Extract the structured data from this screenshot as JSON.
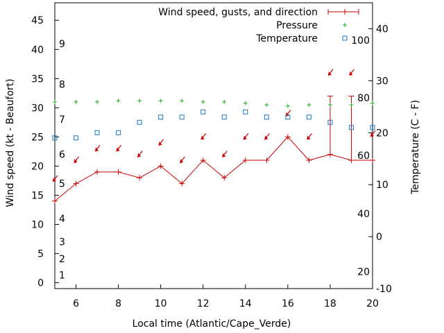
{
  "chart_data": {
    "type": "line",
    "xlabel": "Local time (Atlantic/Cape_Verde)",
    "ylabel": "Wind speed (kt - Beaufort)",
    "y2label": "Temperature (C - F)",
    "xlim": [
      5,
      20
    ],
    "ylim": [
      -1,
      48
    ],
    "y2lim": [
      -10,
      45
    ],
    "x_ticks": [
      6,
      8,
      10,
      12,
      14,
      16,
      18,
      20
    ],
    "y_ticks": [
      0,
      5,
      10,
      15,
      20,
      25,
      30,
      35,
      40,
      45
    ],
    "y2_ticks": [
      -10,
      0,
      10,
      20,
      30,
      40
    ],
    "beaufort_labels": [
      {
        "label": "1",
        "value": 1.3
      },
      {
        "label": "2",
        "value": 4.1
      },
      {
        "label": "3",
        "value": 7.0
      },
      {
        "label": "4",
        "value": 11.0
      },
      {
        "label": "5",
        "value": 17.0
      },
      {
        "label": "6",
        "value": 22.0
      },
      {
        "label": "7",
        "value": 28.0
      },
      {
        "label": "8",
        "value": 34.0
      },
      {
        "label": "9",
        "value": 41.0
      }
    ],
    "fahrenheit_labels": [
      {
        "label": "20",
        "value": -6.7
      },
      {
        "label": "40",
        "value": 4.4
      },
      {
        "label": "60",
        "value": 15.6
      },
      {
        "label": "80",
        "value": 26.7
      },
      {
        "label": "100",
        "value": 37.8
      }
    ],
    "legend": [
      {
        "label": "Wind speed, gusts, and direction",
        "symbol": "line-plus",
        "color": "#cc0000"
      },
      {
        "label": "Pressure",
        "symbol": "plus",
        "color": "#22aa22"
      },
      {
        "label": "Temperature",
        "symbol": "square",
        "color": "#1a78c2"
      }
    ],
    "series": [
      {
        "name": "Wind speed",
        "color": "#cc0000",
        "x": [
          5,
          6,
          7,
          8,
          9,
          10,
          11,
          12,
          13,
          14,
          15,
          16,
          17,
          18,
          19,
          20
        ],
        "values": [
          14,
          17,
          19,
          19,
          18,
          20,
          17,
          21,
          18,
          21,
          21,
          25,
          21,
          22,
          21,
          21
        ]
      },
      {
        "name": "Gusts",
        "color": "#cc0000",
        "x": [
          18,
          19
        ],
        "values": [
          32,
          32
        ]
      },
      {
        "name": "Wind direction arrow level",
        "color": "#cc0000",
        "x": [
          5,
          6,
          7,
          8,
          9,
          10,
          11,
          12,
          13,
          14,
          15,
          16,
          17,
          18,
          19,
          20
        ],
        "values": [
          17.8,
          21,
          23,
          23,
          22,
          24,
          21,
          25,
          22,
          25,
          25,
          29,
          25,
          36,
          36,
          25.5
        ]
      },
      {
        "name": "Pressure",
        "color": "#22aa22",
        "x": [
          5,
          6,
          7,
          8,
          9,
          10,
          11,
          12,
          13,
          14,
          15,
          16,
          17,
          18,
          19,
          20
        ],
        "values": [
          31,
          31,
          31,
          31.2,
          31.2,
          31.2,
          31.2,
          31,
          31,
          30.8,
          30.5,
          30.3,
          30.5,
          30.5,
          30.5,
          30.8
        ]
      },
      {
        "name": "Temperature",
        "color": "#1a78c2",
        "axis": "right",
        "x": [
          5,
          6,
          7,
          8,
          9,
          10,
          11,
          12,
          13,
          14,
          15,
          16,
          17,
          18,
          19,
          20
        ],
        "values": [
          19,
          19,
          20,
          20,
          22,
          23,
          23,
          24,
          23,
          24,
          23,
          23,
          23,
          22,
          21,
          21
        ]
      }
    ]
  }
}
